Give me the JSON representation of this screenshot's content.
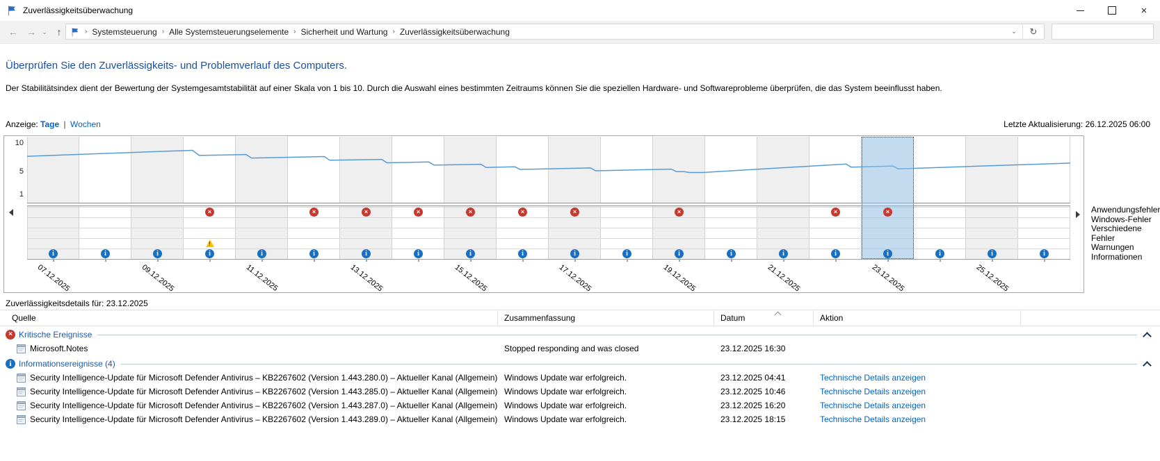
{
  "window": {
    "title": "Zuverlässigkeitsüberwachung",
    "controls": {
      "minimize": "minimize",
      "maximize": "maximize",
      "close": "×"
    }
  },
  "nav": {
    "back_icon": "←",
    "forward_icon": "→",
    "dropdown_icon": "⌄",
    "up_icon": "↑",
    "address_chevron": "⌄",
    "refresh_icon": "↻",
    "breadcrumb": [
      "Systemsteuerung",
      "Alle Systemsteuerungselemente",
      "Sicherheit und Wartung",
      "Zuverlässigkeitsüberwachung"
    ],
    "breadcrumb_separator": "›",
    "search_placeholder": ""
  },
  "page": {
    "heading": "Überprüfen Sie den Zuverlässigkeits- und Problemverlauf des Computers.",
    "description": "Der Stabilitätsindex dient der Bewertung der Systemgesamtstabilität auf einer Skala von 1 bis 10. Durch die Auswahl eines bestimmten Zeitraums können Sie die speziellen Hardware- und Softwareprobleme überprüfen, die das System beeinflusst haben.",
    "view_label": "Anzeige:",
    "view_days": "Tage",
    "view_separator": "|",
    "view_weeks": "Wochen",
    "last_update": "Letzte Aktualisierung: 26.12.2025 06:00"
  },
  "colors": {
    "heading_blue": "#1c50a2",
    "link_blue": "#0563c1",
    "line_blue": "#569bd5",
    "selection_blue": "#8cc4f0",
    "error_red": "#c5392f",
    "warning_yellow": "#fcc400",
    "info_blue": "#1a6fc0",
    "group_text_blue": "#1e5aa8"
  },
  "chart_data": {
    "type": "line",
    "title": "Stabilitätsindex",
    "ylim": [
      1,
      10
    ],
    "y_ticks": [
      10,
      5,
      1
    ],
    "x_days": [
      "07.12.2025",
      "08.12.2025",
      "09.12.2025",
      "10.12.2025",
      "11.12.2025",
      "12.12.2025",
      "13.12.2025",
      "14.12.2025",
      "15.12.2025",
      "16.12.2025",
      "17.12.2025",
      "18.12.2025",
      "19.12.2025",
      "20.12.2025",
      "21.12.2025",
      "22.12.2025",
      "23.12.2025",
      "24.12.2025",
      "25.12.2025",
      "26.12.2025"
    ],
    "x_tick_label_indices": [
      0,
      2,
      4,
      6,
      8,
      10,
      12,
      14,
      16,
      18
    ],
    "selected_day_index": 16,
    "selected_day": "23.12.2025",
    "stability_line": [
      [
        0,
        7.8
      ],
      [
        3.17,
        8.85
      ],
      [
        3.3,
        7.95
      ],
      [
        4.2,
        8.1
      ],
      [
        4.3,
        7.5
      ],
      [
        5.7,
        7.75
      ],
      [
        5.8,
        7.1
      ],
      [
        6.8,
        7.25
      ],
      [
        6.9,
        6.65
      ],
      [
        7.7,
        6.8
      ],
      [
        7.8,
        6.25
      ],
      [
        8.7,
        6.4
      ],
      [
        8.8,
        5.85
      ],
      [
        9.35,
        5.95
      ],
      [
        9.45,
        5.5
      ],
      [
        10.8,
        5.75
      ],
      [
        10.9,
        5.25
      ],
      [
        12.35,
        5.55
      ],
      [
        12.45,
        5.1
      ],
      [
        12.6,
        5.1
      ],
      [
        12.7,
        4.95
      ],
      [
        12.95,
        4.95
      ],
      [
        15.7,
        6.45
      ],
      [
        15.8,
        5.9
      ],
      [
        16.6,
        6.1
      ],
      [
        16.7,
        5.6
      ],
      [
        20,
        6.6
      ]
    ],
    "event_rows": [
      {
        "label": "Anwendungsfehler",
        "icon": "error-icon",
        "day_indices": [
          3,
          5,
          6,
          7,
          8,
          9,
          10,
          12,
          15,
          16
        ]
      },
      {
        "label": "Windows-Fehler",
        "icon": "error-icon",
        "day_indices": []
      },
      {
        "label": "Verschiedene Fehler",
        "icon": "error-icon",
        "day_indices": []
      },
      {
        "label": "Warnungen",
        "icon": "warning-icon",
        "day_indices": [
          3
        ]
      },
      {
        "label": "Informationen",
        "icon": "info-icon",
        "day_indices": [
          0,
          1,
          2,
          3,
          4,
          5,
          6,
          7,
          8,
          9,
          10,
          11,
          12,
          13,
          14,
          15,
          16,
          17,
          18,
          19
        ]
      }
    ],
    "legend_position": "right",
    "grid": true
  },
  "details": {
    "title": "Zuverlässigkeitsdetails für: 23.12.2025",
    "columns": [
      "Quelle",
      "Zusammenfassung",
      "Datum",
      "Aktion"
    ],
    "sorted_column": "Datum",
    "groups": [
      {
        "icon": "critical-error-icon",
        "label": "Kritische Ereignisse",
        "rows": [
          {
            "source": "Microsoft.Notes",
            "summary": "Stopped responding and was closed",
            "date": "23.12.2025 16:30",
            "action": ""
          }
        ]
      },
      {
        "icon": "info-icon",
        "label": "Informationsereignisse (4)",
        "rows": [
          {
            "source": "Security Intelligence-Update für Microsoft Defender Antivirus – KB2267602 (Version 1.443.280.0) – Aktueller Kanal (Allgemein)",
            "summary": "Windows Update war erfolgreich.",
            "date": "23.12.2025 04:41",
            "action": "Technische Details anzeigen"
          },
          {
            "source": "Security Intelligence-Update für Microsoft Defender Antivirus – KB2267602 (Version 1.443.285.0) – Aktueller Kanal (Allgemein)",
            "summary": "Windows Update war erfolgreich.",
            "date": "23.12.2025 10:46",
            "action": "Technische Details anzeigen"
          },
          {
            "source": "Security Intelligence-Update für Microsoft Defender Antivirus – KB2267602 (Version 1.443.287.0) – Aktueller Kanal (Allgemein)",
            "summary": "Windows Update war erfolgreich.",
            "date": "23.12.2025 16:20",
            "action": "Technische Details anzeigen"
          },
          {
            "source": "Security Intelligence-Update für Microsoft Defender Antivirus – KB2267602 (Version 1.443.289.0) – Aktueller Kanal (Allgemein)",
            "summary": "Windows Update war erfolgreich.",
            "date": "23.12.2025 18:15",
            "action": "Technische Details anzeigen"
          }
        ]
      }
    ]
  }
}
